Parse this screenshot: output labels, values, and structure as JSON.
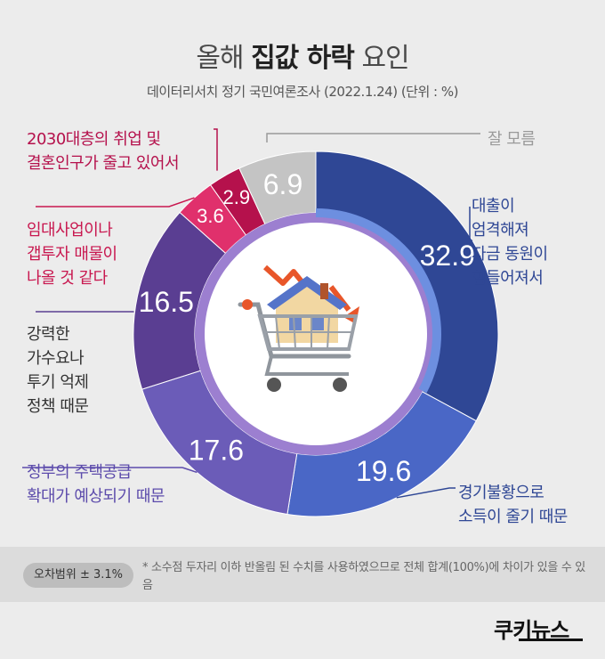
{
  "chart_data": {
    "type": "pie",
    "title_parts": [
      "올해 ",
      "집값 하락",
      " 요인"
    ],
    "subtitle": "데이터리서치 정기 국민여론조사 (2022.1.24)  (단위 : %)",
    "slices": [
      {
        "label": "대출이 엄격해져 자금 동원이 힘들어져서",
        "lines": [
          "대출이",
          "엄격해져",
          "자금 동원이",
          "힘들어져서"
        ],
        "value": 32.9,
        "value_text": "32.9",
        "color": "#2f4795",
        "text_color": "#2f4795"
      },
      {
        "label": "경기불황으로 소득이 줄기 때문",
        "lines": [
          "경기불황으로",
          "소득이 줄기 때문"
        ],
        "value": 19.6,
        "value_text": "19.6",
        "color": "#4a67c6",
        "text_color": "#2f4795"
      },
      {
        "label": "정부의 주택공급 확대가 예상되기 때문",
        "lines": [
          "정부의 주택공급",
          "확대가 예상되기 때문"
        ],
        "value": 17.6,
        "value_text": "17.6",
        "color": "#6b5cb8",
        "text_color": "#5c4bab"
      },
      {
        "label": "강력한 가수요나 투기 억제 정책 때문",
        "lines": [
          "강력한",
          "가수요나",
          "투기 억제",
          "정책 때문"
        ],
        "value": 16.5,
        "value_text": "16.5",
        "color": "#5a3e92",
        "text_color": "#333333"
      },
      {
        "label": "임대사업이나 갭투자 매물이 나올 것 같다",
        "lines": [
          "임대사업이나",
          "갭투자 매물이",
          "나올 것 같다"
        ],
        "value": 3.6,
        "value_text": "3.6",
        "color": "#e0306c",
        "text_color": "#c8174f"
      },
      {
        "label": "2030대층의 취업 및 결혼인구가 줄고 있어서",
        "lines": [
          "2030대층의 취업 및",
          "결혼인구가 줄고 있어서"
        ],
        "value": 2.9,
        "value_text": "2.9",
        "color": "#b5114c",
        "text_color": "#b5114c"
      },
      {
        "label": "잘 모름",
        "lines": [
          "잘 모름"
        ],
        "value": 6.9,
        "value_text": "6.9",
        "color": "#c4c4c4",
        "text_color": "#9a9a9a"
      }
    ]
  },
  "footer": {
    "error_margin": "오차범위  ± 3.1%",
    "note": "* 소수점 두자리 이하 반올림 된 수치를 사용하였으므로 전체 합계(100%)에 차이가 있을 수 있음"
  },
  "logo": {
    "text": "쿠키뉴스"
  }
}
